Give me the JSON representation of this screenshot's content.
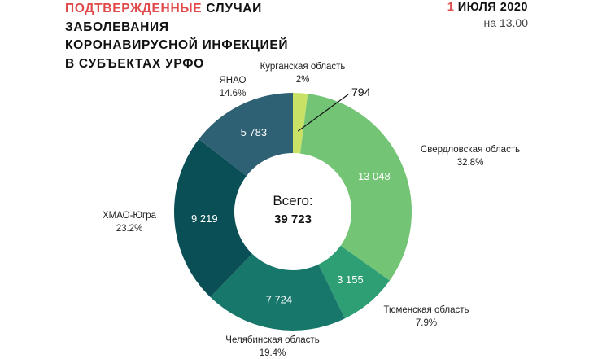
{
  "header": {
    "title_accent": "ПОДТВЕРЖДЕННЫЕ",
    "title_rest1": " СЛУЧАИ",
    "title_line2": "ЗАБОЛЕВАНИЯ",
    "title_line3": "КОРОНАВИРУСНОЙ ИНФЕКЦИЕЙ",
    "title_line4": "В СУБЪЕКТАХ УРФО",
    "date_day": "1",
    "date_rest": " ИЮЛЯ 2020",
    "time": "на 13.00"
  },
  "chart_data": {
    "type": "pie",
    "donut": true,
    "center_label": "Всего:",
    "center_value": "39 723",
    "total": 39723,
    "slices": [
      {
        "name": "Курганская область",
        "value": 794,
        "value_label": "794",
        "percent": "2%",
        "color": "#c9e265"
      },
      {
        "name": "Свердловская область",
        "value": 13048,
        "value_label": "13 048",
        "percent": "32.8%",
        "color": "#74c476"
      },
      {
        "name": "Тюменская область",
        "value": 3155,
        "value_label": "3 155",
        "percent": "7.9%",
        "color": "#2e9e74"
      },
      {
        "name": "Челябинская область",
        "value": 7724,
        "value_label": "7 724",
        "percent": "19.4%",
        "color": "#17776b"
      },
      {
        "name": "ХМАО-Югра",
        "value": 9219,
        "value_label": "9 219",
        "percent": "23.2%",
        "color": "#0b4f56"
      },
      {
        "name": "ЯНАО",
        "value": 5783,
        "value_label": "5 783",
        "percent": "14.6%",
        "color": "#2f6174"
      }
    ]
  }
}
